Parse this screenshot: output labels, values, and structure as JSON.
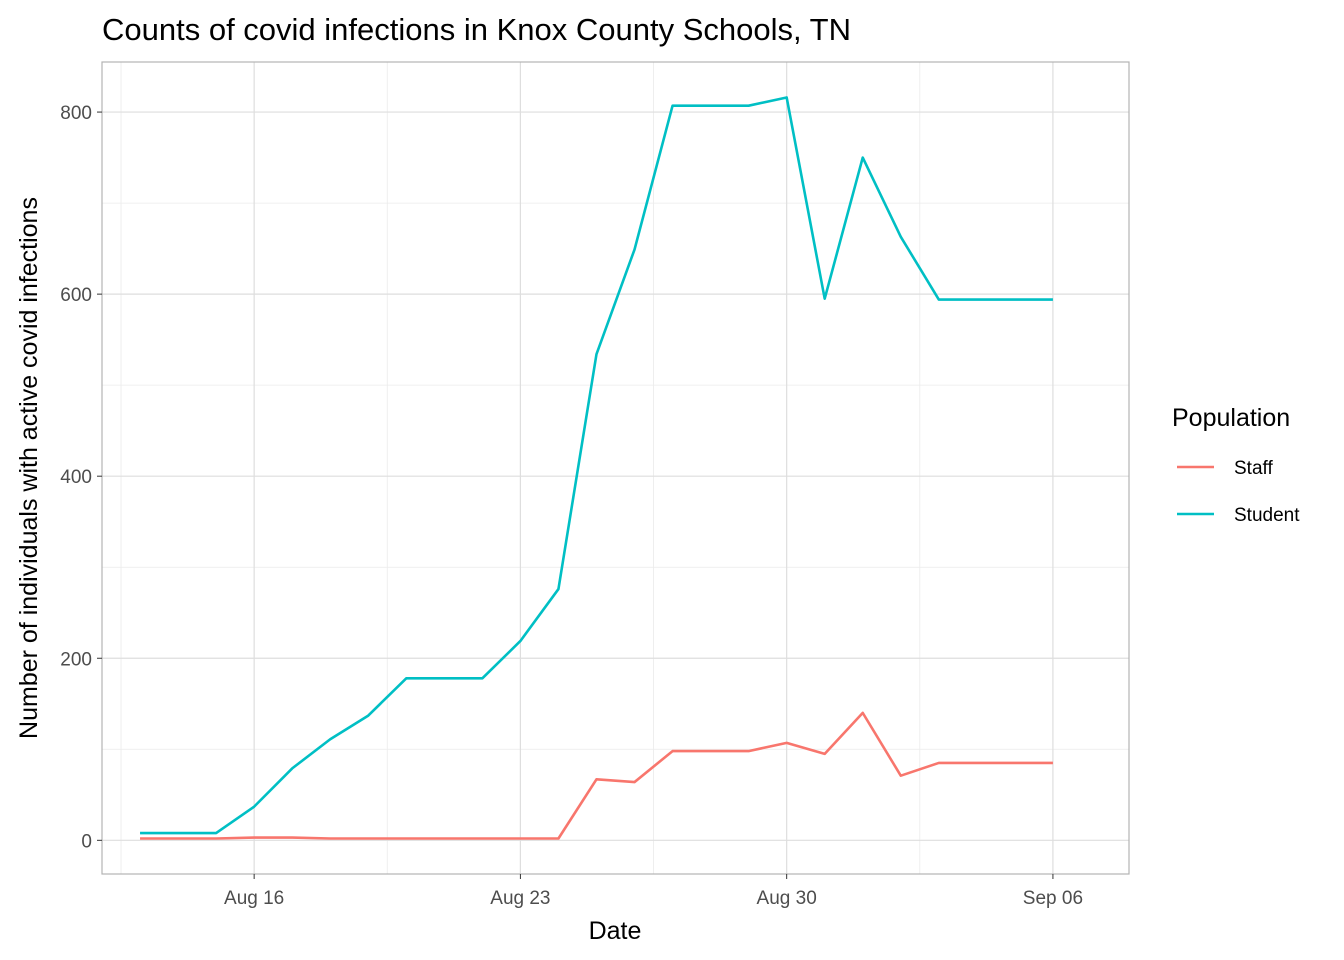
{
  "chart_data": {
    "type": "line",
    "title": "Counts of covid infections in Knox County Schools, TN",
    "xlabel": "Date",
    "ylabel": "Number of individuals with active covid infections",
    "x_ticks": [
      "Aug 16",
      "Aug 23",
      "Aug 30",
      "Sep 06"
    ],
    "y_ticks": [
      "0",
      "200",
      "400",
      "600",
      "800"
    ],
    "ylim": [
      -37,
      855
    ],
    "xlim": [
      "2021-08-12",
      "2021-09-08"
    ],
    "grid": true,
    "legend": {
      "title": "Population",
      "placement": "right"
    },
    "x": [
      "2021-08-13",
      "2021-08-14",
      "2021-08-15",
      "2021-08-16",
      "2021-08-17",
      "2021-08-18",
      "2021-08-19",
      "2021-08-20",
      "2021-08-21",
      "2021-08-22",
      "2021-08-23",
      "2021-08-24",
      "2021-08-25",
      "2021-08-26",
      "2021-08-27",
      "2021-08-28",
      "2021-08-29",
      "2021-08-30",
      "2021-08-31",
      "2021-09-01",
      "2021-09-02",
      "2021-09-03",
      "2021-09-04",
      "2021-09-05",
      "2021-09-06"
    ],
    "series": [
      {
        "name": "Staff",
        "color": "#F8766D",
        "values": [
          2,
          2,
          2,
          3,
          3,
          2,
          2,
          2,
          2,
          2,
          2,
          2,
          67,
          64,
          98,
          98,
          98,
          107,
          95,
          140,
          71,
          85,
          85,
          85,
          85
        ]
      },
      {
        "name": "Student",
        "color": "#00BFC4",
        "values": [
          8,
          8,
          8,
          37,
          79,
          111,
          137,
          178,
          178,
          178,
          219,
          276,
          534,
          649,
          807,
          807,
          807,
          816,
          595,
          750,
          663,
          594,
          594,
          594,
          594
        ]
      }
    ]
  }
}
